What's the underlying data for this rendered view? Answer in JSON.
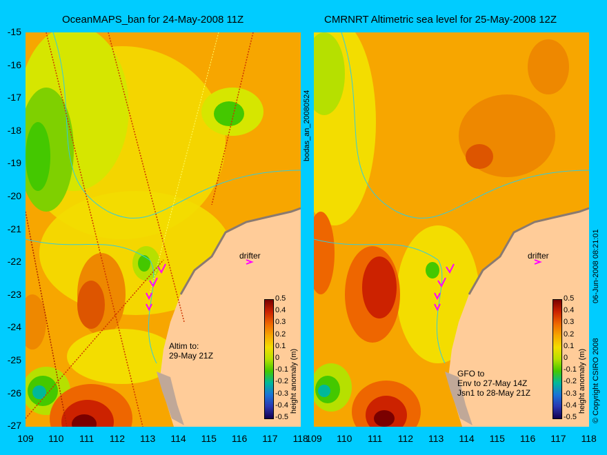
{
  "left_title": "OceanMAPS_ban for 24-May-2008 11Z",
  "right_title": "CMRNRT Altimetric sea level  for 25-May-2008 12Z",
  "lat_ticks": [
    "-15",
    "-16",
    "-17",
    "-18",
    "-19",
    "-20",
    "-21",
    "-22",
    "-23",
    "-24",
    "-25",
    "-26",
    "-27"
  ],
  "lon_ticks": [
    "109",
    "110",
    "111",
    "112",
    "113",
    "114",
    "115",
    "116",
    "117",
    "118"
  ],
  "colorbar": {
    "label": "height anomaly (m)",
    "ticks": [
      "0.5",
      "0.4",
      "0.3",
      "0.2",
      "0.1",
      "0",
      "-0.1",
      "-0.2",
      "-0.3",
      "-0.4",
      "-0.5"
    ],
    "colors": [
      "#7a0000",
      "#cc2200",
      "#ee6600",
      "#f7a600",
      "#f3dd00",
      "#b6e000",
      "#44c800",
      "#00b89a",
      "#1a74d6",
      "#2a36b0",
      "#12004f"
    ]
  },
  "left_panel": {
    "side_label": "bodas_an_20080524",
    "drifter_label": "drifter",
    "annotation_lines": [
      "Altim to:",
      "29-May 21Z"
    ]
  },
  "right_panel": {
    "side_label": "06-Jun-2008 08:21:01",
    "copyright": "© Copyright CSIRO 2008",
    "drifter_label": "drifter",
    "annotation_lines": [
      "GFO to",
      "Env to 27-May 14Z",
      "Jsn1 to 28-May 21Z"
    ]
  },
  "colors": {
    "background": "#00ccff",
    "land": "#ffcc99",
    "coast_shelf": "#c0a898",
    "isobath": "#33ccdd",
    "drifter": "#ff00ff"
  }
}
